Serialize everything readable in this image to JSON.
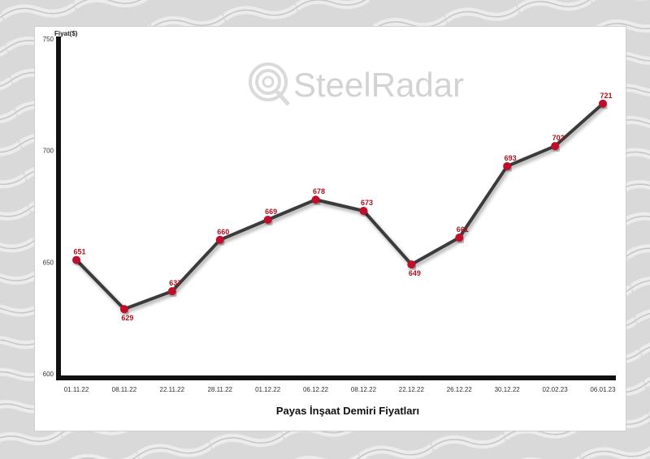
{
  "brand": {
    "name_part1": "Steel",
    "name_part2": "Radar"
  },
  "chart_data": {
    "type": "line",
    "title": "Payas İnşaat Demiri Fiyatları",
    "ylabel": "Fiyat($)",
    "xlabel": "",
    "ylim": [
      600,
      750
    ],
    "yticks": [
      "600",
      "650",
      "700",
      "750"
    ],
    "categories": [
      "01.11.22",
      "08.11.22",
      "22.11.22",
      "28.11.22",
      "01.12.22",
      "06.12.22",
      "08.12.22",
      "22.12.22",
      "26.12.22",
      "30.12.22",
      "02.02.23",
      "06.01.23"
    ],
    "values": [
      651,
      629,
      637,
      660,
      669,
      678,
      673,
      649,
      661,
      693,
      702,
      721
    ],
    "line_color": "#3a3a3a",
    "point_color": "#c0102a",
    "label_color": "#b01020"
  }
}
